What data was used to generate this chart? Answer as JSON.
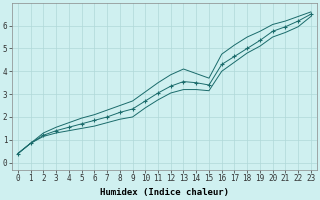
{
  "background_color": "#cff0f0",
  "grid_color": "#b0d8d8",
  "line_color": "#1a6b6b",
  "marker_color": "#1a6b6b",
  "xlabel": "Humidex (Indice chaleur)",
  "xlabel_fontsize": 6.5,
  "tick_fontsize": 5.5,
  "xlim": [
    -0.5,
    23.5
  ],
  "ylim": [
    -0.3,
    7.0
  ],
  "xticks": [
    0,
    1,
    2,
    3,
    4,
    5,
    6,
    7,
    8,
    9,
    10,
    11,
    12,
    13,
    14,
    15,
    16,
    17,
    18,
    19,
    20,
    21,
    22,
    23
  ],
  "yticks": [
    0,
    1,
    2,
    3,
    4,
    5,
    6
  ],
  "line_marker_x": [
    0,
    1,
    2,
    3,
    4,
    5,
    6,
    7,
    8,
    9,
    10,
    11,
    12,
    13,
    14,
    15,
    16,
    17,
    18,
    19,
    20,
    21,
    22,
    23
  ],
  "line_marker_y": [
    0.4,
    0.85,
    1.2,
    1.4,
    1.55,
    1.7,
    1.85,
    2.0,
    2.2,
    2.35,
    2.7,
    3.05,
    3.35,
    3.55,
    3.5,
    3.4,
    4.3,
    4.65,
    5.0,
    5.35,
    5.75,
    5.95,
    6.2,
    6.5
  ],
  "line_upper_x": [
    0,
    1,
    2,
    3,
    4,
    5,
    6,
    7,
    8,
    9,
    10,
    11,
    12,
    13,
    14,
    15,
    16,
    17,
    18,
    19,
    20,
    21,
    22,
    23
  ],
  "line_upper_y": [
    0.4,
    0.85,
    1.3,
    1.55,
    1.75,
    1.95,
    2.1,
    2.3,
    2.5,
    2.7,
    3.1,
    3.5,
    3.85,
    4.1,
    3.9,
    3.7,
    4.75,
    5.15,
    5.5,
    5.75,
    6.05,
    6.2,
    6.4,
    6.6
  ],
  "line_lower_x": [
    0,
    1,
    2,
    3,
    4,
    5,
    6,
    7,
    8,
    9,
    10,
    11,
    12,
    13,
    14,
    15,
    16,
    17,
    18,
    19,
    20,
    21,
    22,
    23
  ],
  "line_lower_y": [
    0.4,
    0.85,
    1.15,
    1.3,
    1.4,
    1.5,
    1.6,
    1.75,
    1.9,
    2.0,
    2.4,
    2.75,
    3.05,
    3.2,
    3.2,
    3.15,
    4.0,
    4.4,
    4.8,
    5.1,
    5.5,
    5.7,
    5.95,
    6.4
  ]
}
